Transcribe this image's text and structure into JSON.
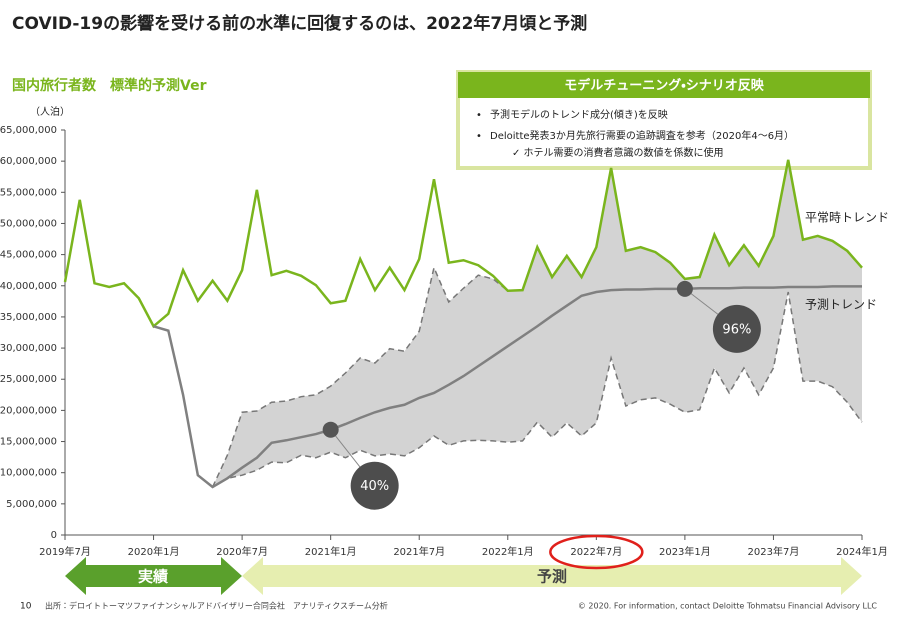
{
  "header": {
    "title": "COVID-19の影響を受ける前の水準に回復するのは、2022年7月頃と予測"
  },
  "scenario_box": {
    "title": "モデルチューニング・シナリオ反映",
    "items": [
      "予測モデルのトレンド成分(傾き)を反映",
      "Deloitte発表3か月先旅行需要の追跡調査を参考（2020年4～6月）",
      "✓ ホテル需要の消費者意識の数値を係数に使用"
    ]
  },
  "periods": [
    "実績",
    "予測"
  ],
  "footer": {
    "page": "10",
    "source": "出所：デロイトトーマツファイナンシャルアドバイザリー合同会社　アナリティクスチーム分析",
    "copyright": "© 2020. For information, contact  Deloitte Tohmatsu Financial Advisory LLC"
  },
  "chart_data": {
    "type": "line",
    "subtitle": "国内旅行者数　標準的予測Ver",
    "y_unit_label": "（人泊）",
    "categories": [
      "2019年7月",
      null,
      null,
      null,
      null,
      null,
      "2020年1月",
      null,
      null,
      null,
      null,
      null,
      "2020年7月",
      null,
      null,
      null,
      null,
      null,
      "2021年1月",
      null,
      null,
      null,
      null,
      null,
      "2021年7月",
      null,
      null,
      null,
      null,
      null,
      "2022年1月",
      null,
      null,
      null,
      null,
      null,
      "2022年7月",
      null,
      null,
      null,
      null,
      null,
      "2023年1月",
      null,
      null,
      null,
      null,
      null,
      "2023年7月",
      null,
      null,
      null,
      null,
      null,
      "2024年1月"
    ],
    "ylim": [
      0,
      65000000
    ],
    "yticks": [
      0,
      {
        "value": 5000000,
        "label": "5,000,000"
      },
      {
        "value": 10000000,
        "label": "10,000,000"
      },
      {
        "value": 15000000,
        "label": "15,000,000"
      },
      {
        "value": 20000000,
        "label": "20,000,000"
      },
      {
        "value": 25000000,
        "label": "25,000,000"
      },
      {
        "value": 30000000,
        "label": "30,000,000"
      },
      {
        "value": 35000000,
        "label": "35,000,000"
      },
      {
        "value": 40000000,
        "label": "40,000,000"
      },
      {
        "value": 45000000,
        "label": "45,000,000"
      },
      {
        "value": 50000000,
        "label": "50,000,000"
      },
      {
        "value": 55000000,
        "label": "55,000,000"
      },
      {
        "value": 60000000,
        "label": "60,000,000"
      },
      {
        "value": 65000000,
        "label": "65,000,000"
      }
    ],
    "grid": false,
    "series": [
      {
        "name": "平常時トレンド",
        "color": "#7ab51d",
        "values": [
          40600000,
          53800000,
          40400000,
          39800000,
          40400000,
          38000000,
          33500000,
          35500000,
          42500000,
          37600000,
          40800000,
          37600000,
          42500000,
          55400000,
          41700000,
          42400000,
          41600000,
          40100000,
          37200000,
          37600000,
          44300000,
          39300000,
          42900000,
          39300000,
          44300000,
          57100000,
          43700000,
          44100000,
          43300000,
          41600000,
          39200000,
          39300000,
          46200000,
          41400000,
          44800000,
          41400000,
          46200000,
          58900000,
          45600000,
          46200000,
          45400000,
          43700000,
          41100000,
          41400000,
          48200000,
          43300000,
          46500000,
          43200000,
          48000000,
          60200000,
          47400000,
          48000000,
          47200000,
          45600000,
          42900000
        ]
      },
      {
        "name": "予測トレンド",
        "color": "#808080",
        "values": [
          null,
          null,
          null,
          null,
          null,
          null,
          33500000,
          32800000,
          22500000,
          9600000,
          7700000,
          9100000,
          10800000,
          12400000,
          14800000,
          15200000,
          15700000,
          16200000,
          16900000,
          17800000,
          18800000,
          19700000,
          20400000,
          20900000,
          22000000,
          22800000,
          24100000,
          25500000,
          27100000,
          28700000,
          30300000,
          31900000,
          33500000,
          35200000,
          36800000,
          38400000,
          39000000,
          39300000,
          39400000,
          39400000,
          39500000,
          39500000,
          39500000,
          39600000,
          39600000,
          39600000,
          39700000,
          39700000,
          39700000,
          39800000,
          39800000,
          39800000,
          39900000,
          39900000,
          39900000
        ]
      }
    ],
    "band": {
      "color": "#d3d3d3",
      "line_color": "#777777",
      "upper": [
        null,
        null,
        null,
        null,
        null,
        null,
        null,
        null,
        null,
        null,
        7700000,
        12800000,
        19700000,
        19900000,
        21300000,
        21500000,
        22200000,
        22500000,
        23900000,
        26000000,
        28400000,
        27600000,
        29900000,
        29500000,
        32700000,
        42900000,
        37400000,
        39600000,
        41700000,
        41100000,
        39200000,
        39300000,
        46200000,
        41400000,
        44800000,
        41400000,
        46200000,
        58900000,
        45600000,
        46200000,
        45400000,
        43700000,
        41100000,
        41400000,
        48200000,
        43300000,
        46500000,
        43200000,
        48000000,
        60200000,
        47400000,
        48000000,
        47200000,
        45600000,
        42900000
      ],
      "lower": [
        null,
        null,
        null,
        null,
        null,
        null,
        null,
        null,
        null,
        null,
        7700000,
        9100000,
        9600000,
        10400000,
        11700000,
        11600000,
        12800000,
        12400000,
        13300000,
        12400000,
        13600000,
        12700000,
        13000000,
        12700000,
        14000000,
        15900000,
        14400000,
        15100000,
        15200000,
        15100000,
        14900000,
        15100000,
        18100000,
        15700000,
        18000000,
        15900000,
        18000000,
        28400000,
        20700000,
        21700000,
        22000000,
        21000000,
        19700000,
        20100000,
        26800000,
        22800000,
        26800000,
        22500000,
        26800000,
        39000000,
        24700000,
        24700000,
        23800000,
        21300000,
        18100000
      ]
    },
    "annotations": [
      "40%",
      "96%"
    ]
  }
}
